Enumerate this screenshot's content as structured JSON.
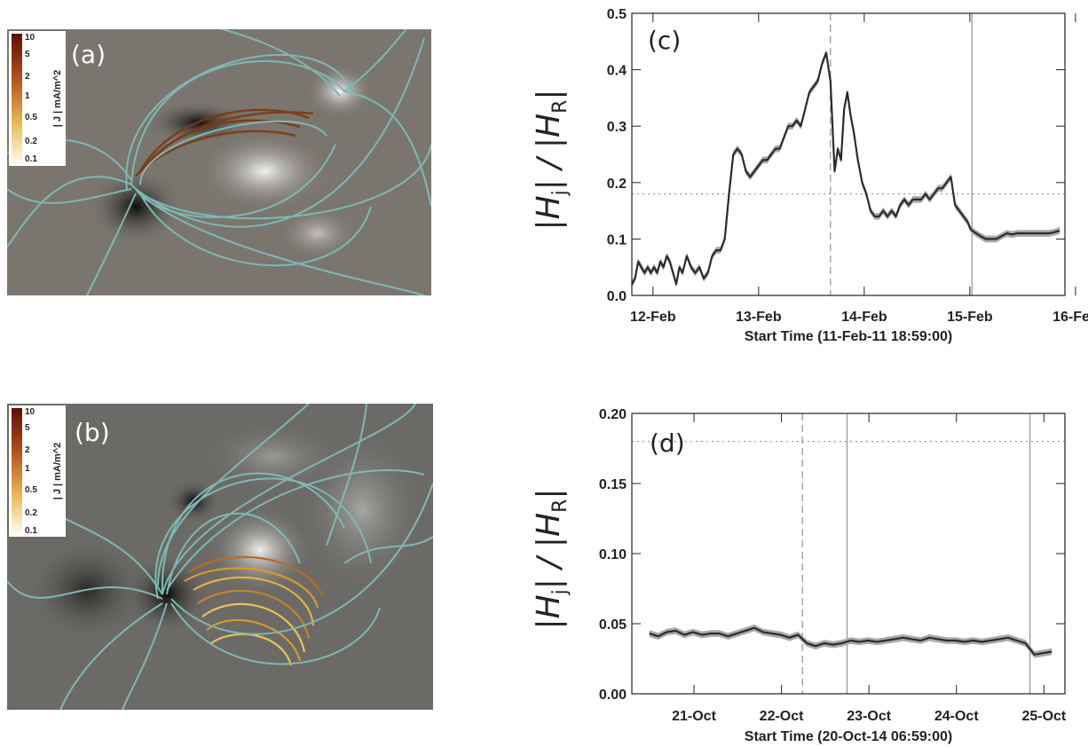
{
  "panels": {
    "a": {
      "label": "(a)",
      "colorbar_label": "| J | mA/m^2",
      "colorbar_ticks": [
        "10",
        "5",
        "2",
        "1",
        "0.5",
        "0.2",
        "0.1"
      ]
    },
    "b": {
      "label": "(b)",
      "colorbar_label": "| J | mA/m^2",
      "colorbar_ticks": [
        "10",
        "5",
        "2",
        "1",
        "0.5",
        "0.2",
        "0.1"
      ]
    }
  },
  "chart_data": [
    {
      "id": "c",
      "type": "line",
      "panel_label": "(c)",
      "ylabel_main": "|H",
      "ylabel_sub1": "j",
      "ylabel_mid": "| / |H",
      "ylabel_sub2": "R",
      "ylabel_end": "|",
      "xlabel": "Start Time (11-Feb-11 18:59:00)",
      "xlim": [
        0,
        4.1
      ],
      "ylim": [
        0,
        0.5
      ],
      "xticks": [
        {
          "x": 0.2,
          "label": "12-Feb"
        },
        {
          "x": 1.2,
          "label": "13-Feb"
        },
        {
          "x": 2.2,
          "label": "14-Feb"
        },
        {
          "x": 3.2,
          "label": "15-Feb"
        },
        {
          "x": 4.2,
          "label": "16-Feb"
        }
      ],
      "yticks": [
        {
          "y": 0.0,
          "label": "0.0"
        },
        {
          "y": 0.1,
          "label": "0.1"
        },
        {
          "y": 0.2,
          "label": "0.2"
        },
        {
          "y": 0.3,
          "label": "0.3"
        },
        {
          "y": 0.4,
          "label": "0.4"
        },
        {
          "y": 0.5,
          "label": "0.5"
        }
      ],
      "hline": 0.18,
      "vlines": [
        {
          "x": 1.88,
          "style": "dashed"
        },
        {
          "x": 3.22,
          "style": "solid"
        }
      ],
      "series": [
        {
          "x": [
            0.0,
            0.03,
            0.06,
            0.09,
            0.12,
            0.15,
            0.18,
            0.21,
            0.24,
            0.27,
            0.3,
            0.33,
            0.36,
            0.39,
            0.42,
            0.45,
            0.48,
            0.52,
            0.56,
            0.6,
            0.64,
            0.68,
            0.72,
            0.76,
            0.8,
            0.84,
            0.88,
            0.92,
            0.96,
            1.0,
            1.04,
            1.08,
            1.12,
            1.16,
            1.2,
            1.24,
            1.28,
            1.32,
            1.36,
            1.4,
            1.44,
            1.48,
            1.52,
            1.56,
            1.6,
            1.64,
            1.68,
            1.72,
            1.76,
            1.8,
            1.84,
            1.88,
            1.9,
            1.92,
            1.95,
            1.98,
            2.01,
            2.04,
            2.07,
            2.1,
            2.14,
            2.18,
            2.22,
            2.26,
            2.3,
            2.34,
            2.38,
            2.42,
            2.46,
            2.5,
            2.54,
            2.58,
            2.62,
            2.66,
            2.7,
            2.74,
            2.78,
            2.82,
            2.86,
            2.9,
            2.94,
            2.98,
            3.02,
            3.06,
            3.1,
            3.14,
            3.18,
            3.2,
            3.22,
            3.26,
            3.3,
            3.35,
            3.4,
            3.45,
            3.5,
            3.55,
            3.6,
            3.65,
            3.7,
            3.75,
            3.8,
            3.85,
            3.9,
            3.95,
            4.0,
            4.05
          ],
          "y": [
            0.02,
            0.03,
            0.06,
            0.05,
            0.04,
            0.05,
            0.04,
            0.05,
            0.04,
            0.06,
            0.05,
            0.07,
            0.06,
            0.04,
            0.02,
            0.05,
            0.04,
            0.07,
            0.05,
            0.04,
            0.05,
            0.03,
            0.04,
            0.07,
            0.08,
            0.08,
            0.1,
            0.18,
            0.25,
            0.26,
            0.25,
            0.22,
            0.21,
            0.22,
            0.23,
            0.24,
            0.24,
            0.25,
            0.26,
            0.26,
            0.28,
            0.3,
            0.3,
            0.31,
            0.3,
            0.33,
            0.36,
            0.37,
            0.38,
            0.41,
            0.43,
            0.38,
            0.3,
            0.22,
            0.26,
            0.24,
            0.33,
            0.36,
            0.32,
            0.29,
            0.24,
            0.2,
            0.18,
            0.15,
            0.14,
            0.14,
            0.15,
            0.14,
            0.15,
            0.14,
            0.16,
            0.17,
            0.16,
            0.17,
            0.17,
            0.17,
            0.18,
            0.17,
            0.18,
            0.19,
            0.19,
            0.2,
            0.21,
            0.16,
            0.15,
            0.14,
            0.13,
            0.12,
            0.115,
            0.11,
            0.105,
            0.1,
            0.1,
            0.1,
            0.105,
            0.11,
            0.108,
            0.11,
            0.11,
            0.11,
            0.11,
            0.11,
            0.11,
            0.11,
            0.112,
            0.115
          ]
        }
      ]
    },
    {
      "id": "d",
      "type": "line",
      "panel_label": "(d)",
      "ylabel_main": "|H",
      "ylabel_sub1": "j",
      "ylabel_mid": "| / |H",
      "ylabel_sub2": "R",
      "ylabel_end": "|",
      "xlabel": "Start Time (20-Oct-14 06:59:00)",
      "xlim": [
        0,
        4.95
      ],
      "ylim": [
        0,
        0.2
      ],
      "xticks": [
        {
          "x": 0.71,
          "label": "21-Oct"
        },
        {
          "x": 1.71,
          "label": "22-Oct"
        },
        {
          "x": 2.71,
          "label": "23-Oct"
        },
        {
          "x": 3.71,
          "label": "24-Oct"
        },
        {
          "x": 4.71,
          "label": "25-Oct"
        }
      ],
      "yticks": [
        {
          "y": 0.0,
          "label": "0.00"
        },
        {
          "y": 0.05,
          "label": "0.05"
        },
        {
          "y": 0.1,
          "label": "0.10"
        },
        {
          "y": 0.15,
          "label": "0.15"
        },
        {
          "y": 0.2,
          "label": "0.20"
        }
      ],
      "hline": 0.18,
      "vlines": [
        {
          "x": 1.95,
          "style": "dashed"
        },
        {
          "x": 2.46,
          "style": "solid"
        },
        {
          "x": 4.55,
          "style": "solid"
        }
      ],
      "series": [
        {
          "x": [
            0.2,
            0.3,
            0.4,
            0.5,
            0.6,
            0.7,
            0.8,
            0.9,
            1.0,
            1.1,
            1.2,
            1.3,
            1.4,
            1.5,
            1.6,
            1.7,
            1.8,
            1.9,
            2.0,
            2.1,
            2.2,
            2.3,
            2.4,
            2.5,
            2.6,
            2.7,
            2.8,
            2.9,
            3.0,
            3.1,
            3.2,
            3.3,
            3.4,
            3.5,
            3.6,
            3.7,
            3.8,
            3.9,
            4.0,
            4.1,
            4.2,
            4.3,
            4.4,
            4.5,
            4.55,
            4.6,
            4.7,
            4.8
          ],
          "y": [
            0.043,
            0.041,
            0.044,
            0.045,
            0.042,
            0.044,
            0.042,
            0.043,
            0.043,
            0.041,
            0.043,
            0.045,
            0.047,
            0.044,
            0.043,
            0.042,
            0.04,
            0.042,
            0.036,
            0.034,
            0.036,
            0.035,
            0.036,
            0.038,
            0.037,
            0.038,
            0.037,
            0.038,
            0.039,
            0.04,
            0.039,
            0.038,
            0.04,
            0.039,
            0.038,
            0.038,
            0.037,
            0.038,
            0.037,
            0.038,
            0.039,
            0.04,
            0.038,
            0.036,
            0.032,
            0.028,
            0.029,
            0.03
          ]
        }
      ]
    }
  ],
  "colors": {
    "line": "#2b2b2b",
    "band": "#a9a9a9",
    "field_line": "#7fb8b5",
    "magnetogram_bg": "#7a766f",
    "ref_line": "#9a9a9a"
  }
}
